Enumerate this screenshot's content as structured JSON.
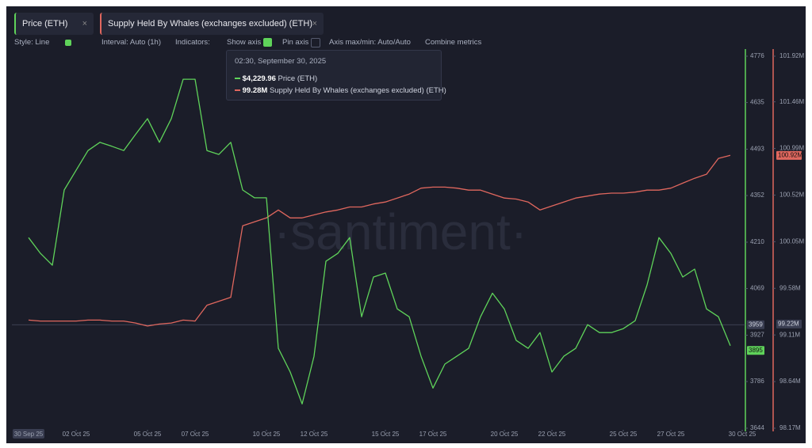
{
  "tabs": [
    "Price (ETH)",
    "Supply Held By Whales (exchanges excluded) (ETH)"
  ],
  "toolbar": [
    "Style: Line",
    "Interval: Auto (1h)",
    "Indicators:",
    "Show axis",
    "Pin axis",
    "Axis max/min: Auto/Auto",
    "Combine metrics"
  ],
  "tooltip": {
    "time": "02:30, September 30, 2025",
    "rows": [
      {
        "value": "$4,229.96",
        "name": "Price (ETH)"
      },
      {
        "value": "99.28M",
        "name": "Supply Held By Whales (exchanges excluded) (ETH)"
      }
    ]
  },
  "watermark": "·santiment·",
  "chart_data": {
    "type": "line",
    "x": [
      "2025-09-30 00:00",
      "2025-09-30 12:00",
      "2025-10-01 00:00",
      "2025-10-01 12:00",
      "2025-10-02 00:00",
      "2025-10-02 12:00",
      "2025-10-03 00:00",
      "2025-10-03 12:00",
      "2025-10-04 00:00",
      "2025-10-04 12:00",
      "2025-10-05 00:00",
      "2025-10-05 12:00",
      "2025-10-06 00:00",
      "2025-10-06 12:00",
      "2025-10-07 00:00",
      "2025-10-07 12:00",
      "2025-10-08 00:00",
      "2025-10-08 12:00",
      "2025-10-09 00:00",
      "2025-10-09 12:00",
      "2025-10-10 00:00",
      "2025-10-10 12:00",
      "2025-10-11 00:00",
      "2025-10-11 12:00",
      "2025-10-12 00:00",
      "2025-10-12 12:00",
      "2025-10-13 00:00",
      "2025-10-13 12:00",
      "2025-10-14 00:00",
      "2025-10-14 12:00",
      "2025-10-15 00:00",
      "2025-10-15 12:00",
      "2025-10-16 00:00",
      "2025-10-16 12:00",
      "2025-10-17 00:00",
      "2025-10-17 12:00",
      "2025-10-18 00:00",
      "2025-10-18 12:00",
      "2025-10-19 00:00",
      "2025-10-19 12:00",
      "2025-10-20 00:00",
      "2025-10-20 12:00",
      "2025-10-21 00:00",
      "2025-10-21 12:00",
      "2025-10-22 00:00",
      "2025-10-22 12:00",
      "2025-10-23 00:00",
      "2025-10-23 12:00",
      "2025-10-24 00:00",
      "2025-10-24 12:00",
      "2025-10-25 00:00",
      "2025-10-25 12:00",
      "2025-10-26 00:00",
      "2025-10-26 12:00",
      "2025-10-27 00:00",
      "2025-10-27 12:00",
      "2025-10-28 00:00",
      "2025-10-28 12:00",
      "2025-10-29 00:00",
      "2025-10-29 12:00"
    ],
    "series": [
      {
        "name": "Price (ETH)",
        "color": "#5fd35a",
        "axis": "y",
        "values": [
          4224,
          4176,
          4140,
          4369,
          4429,
          4489,
          4514,
          4502,
          4489,
          4538,
          4586,
          4514,
          4586,
          4706,
          4706,
          4489,
          4477,
          4514,
          4369,
          4345,
          4345,
          3887,
          3815,
          3718,
          3863,
          4152,
          4176,
          4224,
          3983,
          4104,
          4116,
          4007,
          3983,
          3863,
          3766,
          3839,
          3863,
          3887,
          3983,
          4055,
          4007,
          3911,
          3887,
          3935,
          3815,
          3863,
          3887,
          3959,
          3935,
          3935,
          3947,
          3971,
          4080,
          4224,
          4176,
          4104,
          4128,
          4007,
          3983,
          3895
        ]
      },
      {
        "name": "Supply Held By Whales (exchanges excluded) (ETH)",
        "color": "#e0675e",
        "axis": "y2",
        "values": [
          99.26,
          99.25,
          99.25,
          99.25,
          99.25,
          99.26,
          99.26,
          99.25,
          99.25,
          99.23,
          99.2,
          99.22,
          99.23,
          99.26,
          99.25,
          99.41,
          99.45,
          99.49,
          100.21,
          100.25,
          100.29,
          100.37,
          100.29,
          100.29,
          100.32,
          100.35,
          100.37,
          100.4,
          100.4,
          100.43,
          100.45,
          100.49,
          100.53,
          100.59,
          100.6,
          100.6,
          100.59,
          100.57,
          100.57,
          100.53,
          100.49,
          100.48,
          100.45,
          100.37,
          100.41,
          100.45,
          100.49,
          100.51,
          100.53,
          100.54,
          100.54,
          100.55,
          100.57,
          100.57,
          100.59,
          100.64,
          100.69,
          100.73,
          100.89,
          100.92
        ]
      }
    ],
    "xlim": [
      "2025-09-29 12:00",
      "2025-10-30 12:00"
    ],
    "xticks": [
      {
        "value": "2025-09-30 00:00",
        "label": "30 Sep 25"
      },
      {
        "value": "2025-10-02 00:00",
        "label": "02 Oct 25"
      },
      {
        "value": "2025-10-05 00:00",
        "label": "05 Oct 25"
      },
      {
        "value": "2025-10-07 00:00",
        "label": "07 Oct 25"
      },
      {
        "value": "2025-10-10 00:00",
        "label": "10 Oct 25"
      },
      {
        "value": "2025-10-12 00:00",
        "label": "12 Oct 25"
      },
      {
        "value": "2025-10-15 00:00",
        "label": "15 Oct 25"
      },
      {
        "value": "2025-10-17 00:00",
        "label": "17 Oct 25"
      },
      {
        "value": "2025-10-20 00:00",
        "label": "20 Oct 25"
      },
      {
        "value": "2025-10-22 00:00",
        "label": "22 Oct 25"
      },
      {
        "value": "2025-10-25 00:00",
        "label": "25 Oct 25"
      },
      {
        "value": "2025-10-27 00:00",
        "label": "27 Oct 25"
      },
      {
        "value": "2025-10-30 00:00",
        "label": "30 Oct 25"
      }
    ],
    "ylim": [
      3644,
      4776
    ],
    "yticks": [
      3644,
      3786,
      3927,
      4069,
      4210,
      4352,
      4493,
      4635,
      4776
    ],
    "y2lim": [
      98.17,
      101.92
    ],
    "y2ticks": [
      {
        "value": 98.17,
        "label": "98.17M"
      },
      {
        "value": 98.64,
        "label": "98.64M"
      },
      {
        "value": 99.11,
        "label": "99.11M"
      },
      {
        "value": 99.58,
        "label": "99.58M"
      },
      {
        "value": 100.05,
        "label": "100.05M"
      },
      {
        "value": 100.52,
        "label": "100.52M"
      },
      {
        "value": 100.99,
        "label": "100.99M"
      },
      {
        "value": 101.46,
        "label": "101.46M"
      },
      {
        "value": 101.92,
        "label": "101.92M"
      }
    ],
    "crosshair": {
      "y": 3959,
      "y2": {
        "value": 99.22,
        "label": "99.22M"
      }
    },
    "last_values": {
      "y": 3895,
      "y2": {
        "value": 100.92,
        "label": "100.92M"
      }
    }
  }
}
